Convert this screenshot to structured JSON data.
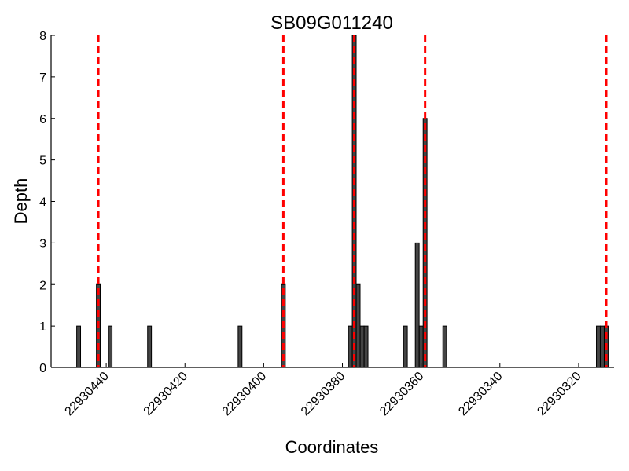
{
  "chart_data": {
    "type": "bar",
    "title": "SB09G011240",
    "xlabel": "Coordinates",
    "ylabel": "Depth",
    "x_axis_reversed": true,
    "xlim": [
      22930454,
      22930311
    ],
    "ylim": [
      0,
      8
    ],
    "x_ticks": [
      22930440,
      22930420,
      22930400,
      22930380,
      22930360,
      22930340,
      22930320
    ],
    "x_tick_labels": [
      "22930440",
      "22930420",
      "22930400",
      "22930380",
      "22930360",
      "22930340",
      "22930320"
    ],
    "y_ticks": [
      0,
      1,
      2,
      3,
      4,
      5,
      6,
      7,
      8
    ],
    "y_tick_labels": [
      "0",
      "1",
      "2",
      "3",
      "4",
      "5",
      "6",
      "7",
      "8"
    ],
    "grid": false,
    "bar_color": "#444444",
    "bars": [
      {
        "x": 22930447,
        "depth": 1
      },
      {
        "x": 22930442,
        "depth": 2
      },
      {
        "x": 22930439,
        "depth": 1
      },
      {
        "x": 22930429,
        "depth": 1
      },
      {
        "x": 22930406,
        "depth": 1
      },
      {
        "x": 22930395,
        "depth": 2
      },
      {
        "x": 22930378,
        "depth": 1
      },
      {
        "x": 22930377,
        "depth": 8
      },
      {
        "x": 22930376,
        "depth": 2
      },
      {
        "x": 22930375,
        "depth": 1
      },
      {
        "x": 22930374,
        "depth": 1
      },
      {
        "x": 22930364,
        "depth": 1
      },
      {
        "x": 22930361,
        "depth": 3
      },
      {
        "x": 22930360,
        "depth": 1
      },
      {
        "x": 22930359,
        "depth": 6
      },
      {
        "x": 22930354,
        "depth": 1
      },
      {
        "x": 22930315,
        "depth": 1
      },
      {
        "x": 22930314,
        "depth": 1
      },
      {
        "x": 22930313,
        "depth": 1
      }
    ],
    "reference_lines": {
      "color": "#ff0000",
      "style": "dashed",
      "x": [
        22930442,
        22930395,
        22930377,
        22930359,
        22930313
      ]
    }
  }
}
